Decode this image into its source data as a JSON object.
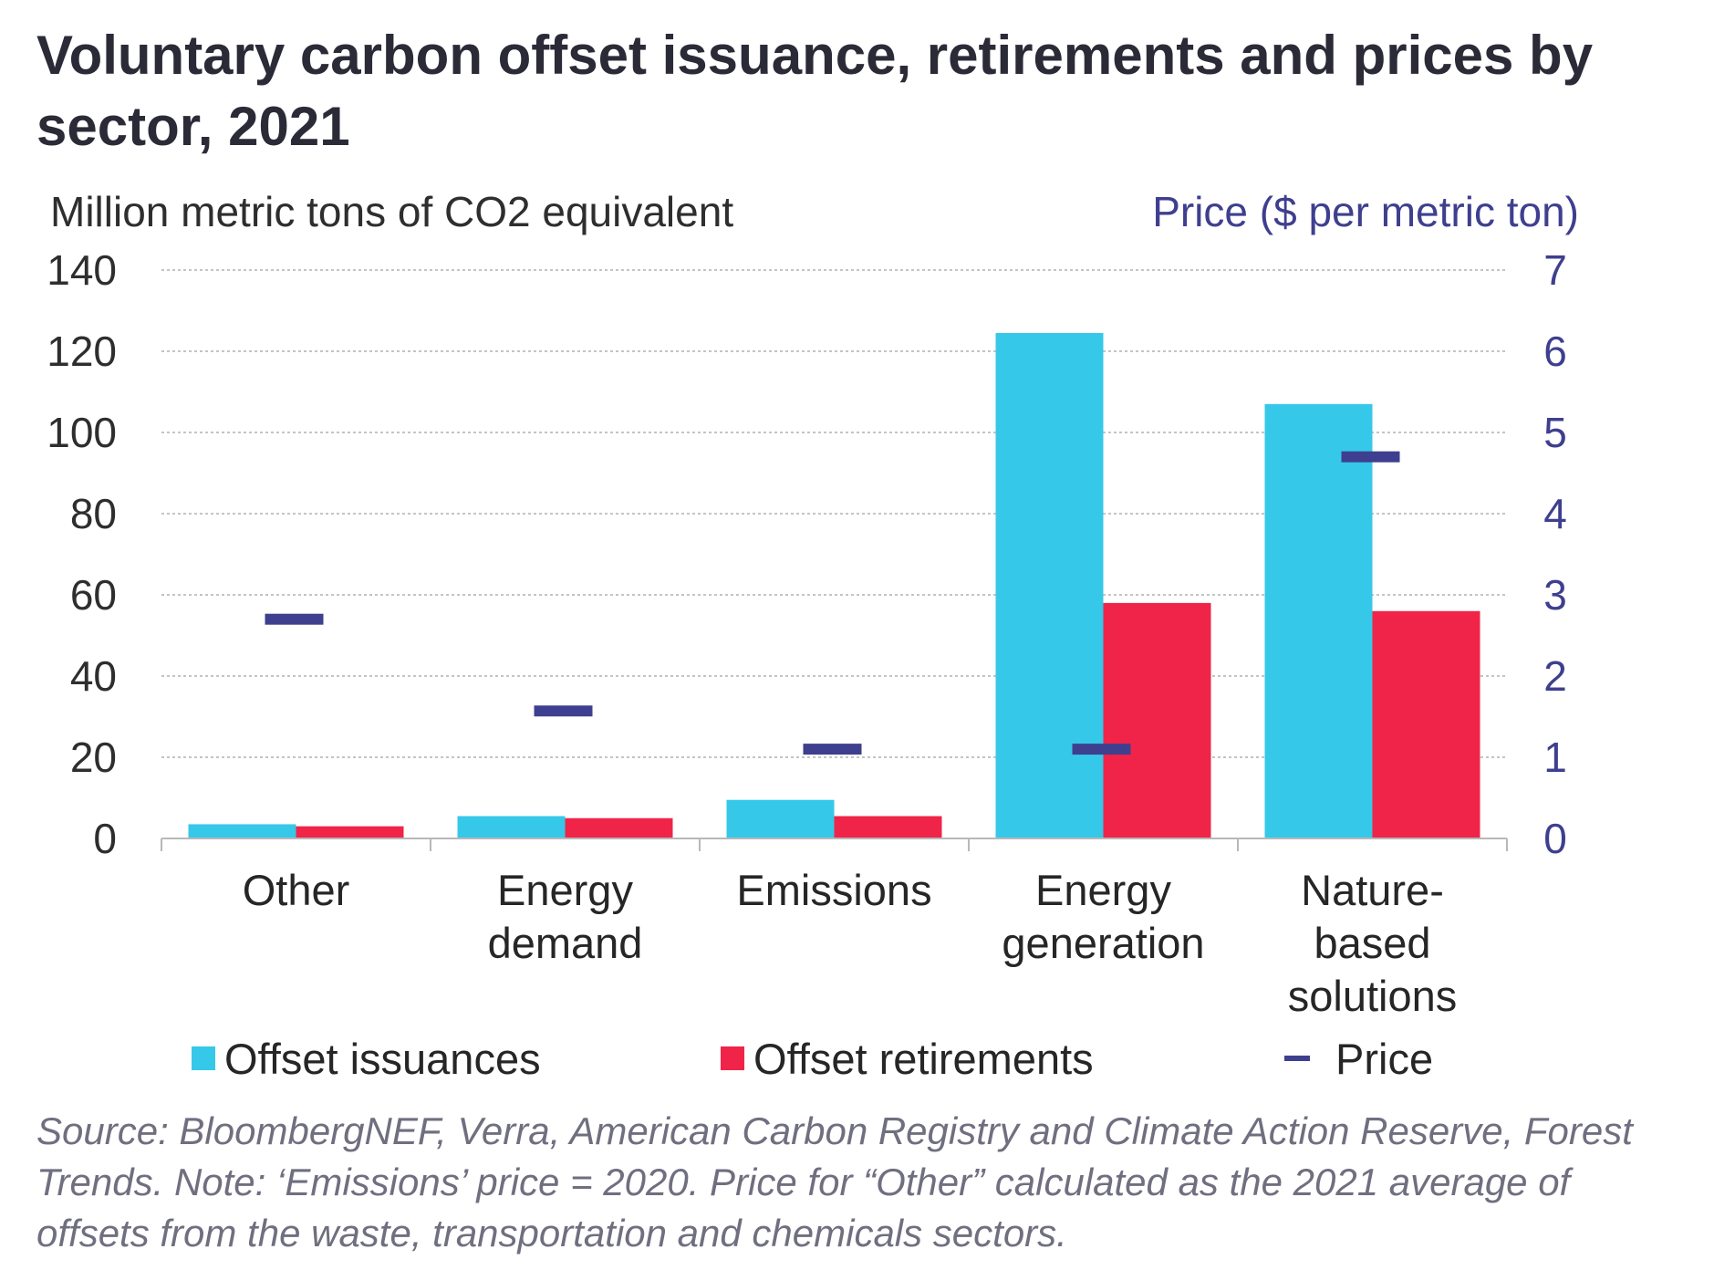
{
  "title": "Voluntary carbon offset issuance, retirements and prices by sector, 2021",
  "left_axis_label": "Million metric tons of CO2 equivalent",
  "right_axis_label": "Price ($ per metric ton)",
  "colors": {
    "issuances": "#36c8e8",
    "retirements": "#f02448",
    "price": "#3f3f8f",
    "gridline": "#b0b0b0"
  },
  "legend": {
    "issuances": "Offset issuances",
    "retirements": "Offset retirements",
    "price": "Price"
  },
  "source": "Source: BloombergNEF, Verra, American Carbon Registry and Climate Action Reserve, Forest Trends. Note: ‘Emissions’ price = 2020. Price for “Other” calculated as the 2021 average of offsets from the waste, transportation and chemicals sectors.",
  "chart_data": {
    "type": "bar",
    "categories": [
      [
        "Other"
      ],
      [
        "Energy",
        "demand"
      ],
      [
        "Emissions"
      ],
      [
        "Energy",
        "generation"
      ],
      [
        "Nature-",
        "based",
        "solutions"
      ]
    ],
    "series": [
      {
        "name": "Offset issuances",
        "axis": "left",
        "type": "bar",
        "values": [
          3.5,
          5.5,
          9.5,
          124.5,
          107
        ]
      },
      {
        "name": "Offset retirements",
        "axis": "left",
        "type": "bar",
        "values": [
          3,
          5,
          5.5,
          58,
          56
        ]
      },
      {
        "name": "Price",
        "axis": "right",
        "type": "marker",
        "values": [
          2.7,
          1.57,
          1.1,
          1.1,
          4.7
        ]
      }
    ],
    "left_axis": {
      "ylim": [
        0,
        140
      ],
      "ticks": [
        "0",
        "20",
        "40",
        "60",
        "80",
        "100",
        "120",
        "140"
      ]
    },
    "right_axis": {
      "ylim": [
        0,
        7
      ],
      "ticks": [
        "0",
        "1",
        "2",
        "3",
        "4",
        "5",
        "6",
        "7"
      ]
    },
    "grid": true,
    "legend_position": "bottom"
  }
}
